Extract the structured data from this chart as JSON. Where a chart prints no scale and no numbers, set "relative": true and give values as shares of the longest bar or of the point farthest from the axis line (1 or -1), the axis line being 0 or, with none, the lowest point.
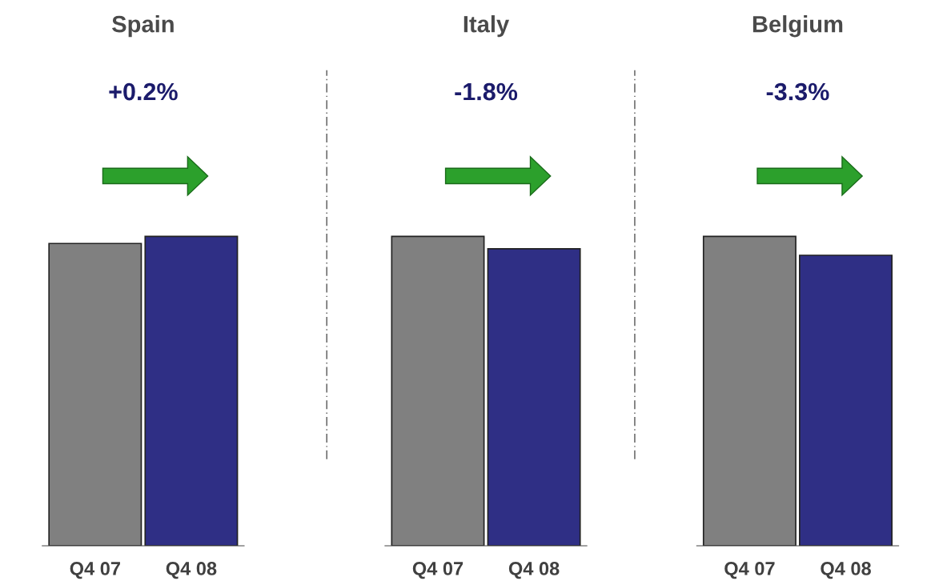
{
  "chart_data": [
    {
      "type": "bar",
      "title": "Spain",
      "categories": [
        "Q4 07",
        "Q4 08"
      ],
      "values": [
        0.977,
        1
      ],
      "colors": [
        "#808080",
        "#2f2f85"
      ],
      "relative": true,
      "annotations": [
        "+0.2%"
      ]
    },
    {
      "type": "bar",
      "title": "Italy",
      "categories": [
        "Q4 07",
        "Q4 08"
      ],
      "values": [
        1,
        0.96
      ],
      "colors": [
        "#808080",
        "#2f2f85"
      ],
      "relative": true,
      "annotations": [
        "-1.8%"
      ]
    },
    {
      "type": "bar",
      "title": "Belgium",
      "categories": [
        "Q4 07",
        "Q4 08"
      ],
      "values": [
        1,
        0.939
      ],
      "colors": [
        "#808080",
        "#2f2f85"
      ],
      "relative": true,
      "annotations": [
        "-3.3%"
      ]
    }
  ]
}
